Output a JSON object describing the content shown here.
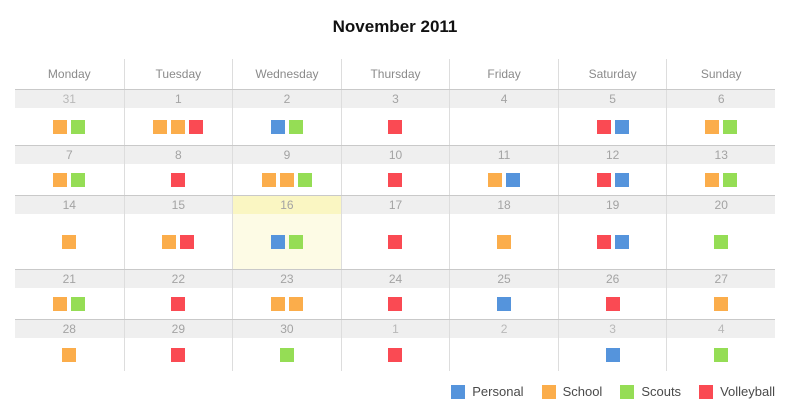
{
  "title": "November 2011",
  "weekdays": [
    "Monday",
    "Tuesday",
    "Wednesday",
    "Thursday",
    "Friday",
    "Saturday",
    "Sunday"
  ],
  "colors": {
    "personal": "#5594DC",
    "school": "#FBAD4B",
    "scouts": "#95DD55",
    "volleyball": "#FA4A53",
    "highlight_date_bg": "#FAF6C2",
    "highlight_body_bg": "#FDFBE5",
    "date_band_bg": "#EFEFEF"
  },
  "weeks": [
    {
      "days": [
        {
          "date": "31",
          "other_month": true,
          "highlight": false,
          "events": [
            "school",
            "scouts"
          ]
        },
        {
          "date": "1",
          "other_month": false,
          "highlight": false,
          "events": [
            "school",
            "school",
            "volleyball"
          ]
        },
        {
          "date": "2",
          "other_month": false,
          "highlight": false,
          "events": [
            "personal",
            "scouts"
          ]
        },
        {
          "date": "3",
          "other_month": false,
          "highlight": false,
          "events": [
            "volleyball"
          ]
        },
        {
          "date": "4",
          "other_month": false,
          "highlight": false,
          "events": []
        },
        {
          "date": "5",
          "other_month": false,
          "highlight": false,
          "events": [
            "volleyball",
            "personal"
          ]
        },
        {
          "date": "6",
          "other_month": false,
          "highlight": false,
          "events": [
            "school",
            "scouts"
          ]
        }
      ]
    },
    {
      "days": [
        {
          "date": "7",
          "other_month": false,
          "highlight": false,
          "events": [
            "school",
            "scouts"
          ]
        },
        {
          "date": "8",
          "other_month": false,
          "highlight": false,
          "events": [
            "volleyball"
          ]
        },
        {
          "date": "9",
          "other_month": false,
          "highlight": false,
          "events": [
            "school",
            "school",
            "scouts"
          ]
        },
        {
          "date": "10",
          "other_month": false,
          "highlight": false,
          "events": [
            "volleyball"
          ]
        },
        {
          "date": "11",
          "other_month": false,
          "highlight": false,
          "events": [
            "school",
            "personal"
          ]
        },
        {
          "date": "12",
          "other_month": false,
          "highlight": false,
          "events": [
            "volleyball",
            "personal"
          ]
        },
        {
          "date": "13",
          "other_month": false,
          "highlight": false,
          "events": [
            "school",
            "scouts"
          ]
        }
      ]
    },
    {
      "days": [
        {
          "date": "14",
          "other_month": false,
          "highlight": false,
          "events": [
            "school"
          ]
        },
        {
          "date": "15",
          "other_month": false,
          "highlight": false,
          "events": [
            "school",
            "volleyball"
          ]
        },
        {
          "date": "16",
          "other_month": false,
          "highlight": true,
          "events": [
            "personal",
            "scouts"
          ]
        },
        {
          "date": "17",
          "other_month": false,
          "highlight": false,
          "events": [
            "volleyball"
          ]
        },
        {
          "date": "18",
          "other_month": false,
          "highlight": false,
          "events": [
            "school"
          ]
        },
        {
          "date": "19",
          "other_month": false,
          "highlight": false,
          "events": [
            "volleyball",
            "personal"
          ]
        },
        {
          "date": "20",
          "other_month": false,
          "highlight": false,
          "events": [
            "scouts"
          ]
        }
      ]
    },
    {
      "days": [
        {
          "date": "21",
          "other_month": false,
          "highlight": false,
          "events": [
            "school",
            "scouts"
          ]
        },
        {
          "date": "22",
          "other_month": false,
          "highlight": false,
          "events": [
            "volleyball"
          ]
        },
        {
          "date": "23",
          "other_month": false,
          "highlight": false,
          "events": [
            "school",
            "school"
          ]
        },
        {
          "date": "24",
          "other_month": false,
          "highlight": false,
          "events": [
            "volleyball"
          ]
        },
        {
          "date": "25",
          "other_month": false,
          "highlight": false,
          "events": [
            "personal"
          ]
        },
        {
          "date": "26",
          "other_month": false,
          "highlight": false,
          "events": [
            "volleyball"
          ]
        },
        {
          "date": "27",
          "other_month": false,
          "highlight": false,
          "events": [
            "school"
          ]
        }
      ]
    },
    {
      "days": [
        {
          "date": "28",
          "other_month": false,
          "highlight": false,
          "events": [
            "school"
          ]
        },
        {
          "date": "29",
          "other_month": false,
          "highlight": false,
          "events": [
            "volleyball"
          ]
        },
        {
          "date": "30",
          "other_month": false,
          "highlight": false,
          "events": [
            "scouts"
          ]
        },
        {
          "date": "1",
          "other_month": true,
          "highlight": false,
          "events": [
            "volleyball"
          ]
        },
        {
          "date": "2",
          "other_month": true,
          "highlight": false,
          "events": []
        },
        {
          "date": "3",
          "other_month": true,
          "highlight": false,
          "events": [
            "personal"
          ]
        },
        {
          "date": "4",
          "other_month": true,
          "highlight": false,
          "events": [
            "scouts"
          ]
        }
      ]
    }
  ],
  "legend": [
    {
      "label": "Personal",
      "category": "personal"
    },
    {
      "label": "School",
      "category": "school"
    },
    {
      "label": "Scouts",
      "category": "scouts"
    },
    {
      "label": "Volleyball",
      "category": "volleyball"
    }
  ]
}
